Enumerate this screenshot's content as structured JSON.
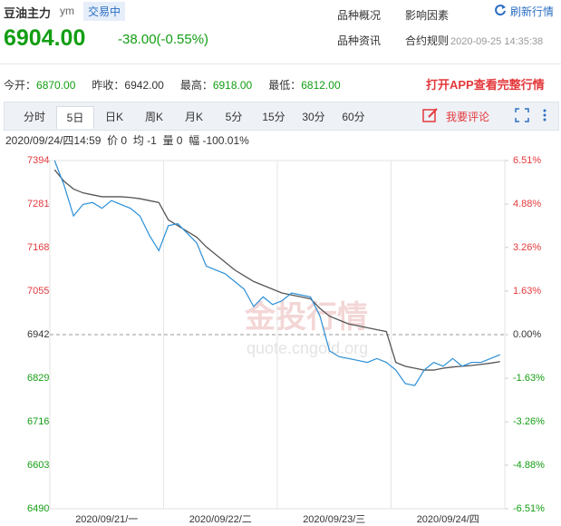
{
  "header": {
    "title": "豆油主力",
    "code": "ym",
    "status": "交易中",
    "price": "6904.00",
    "change": "-38.00(-0.55%)",
    "refresh": "刷新行情",
    "links": [
      "品种概况",
      "影响因素",
      "品种资讯",
      "合约规则"
    ],
    "datetime": "2020-09-25 14:35:38"
  },
  "stats": [
    {
      "label": "今开：",
      "value": "6870.00"
    },
    {
      "label": "昨收：",
      "value": "6942.00"
    },
    {
      "label": "最高：",
      "value": "6918.00"
    },
    {
      "label": "最低：",
      "value": "6812.00"
    }
  ],
  "app_link": "打开APP查看完整行情",
  "tabs": [
    "分时",
    "5日",
    "日K",
    "周K",
    "月K",
    "5分",
    "15分",
    "30分",
    "60分"
  ],
  "active_tab": "5日",
  "comment": "我要评论",
  "info_line": "2020/09/24/四14:59  价 0  均 -1  量 0  幅 -100.01%",
  "watermark": [
    "金投行情",
    "quote.cngold.org"
  ],
  "chart_data": {
    "type": "line",
    "categories": [
      null,
      null,
      null,
      null,
      null,
      null,
      "2020/09/21/一",
      null,
      null,
      null,
      null,
      null,
      null,
      null,
      null,
      null,
      null,
      null,
      "2020/09/22/二",
      null,
      null,
      null,
      null,
      null,
      null,
      null,
      null,
      null,
      null,
      null,
      "2020/09/23/三",
      null,
      null,
      null,
      null,
      null,
      null,
      null,
      null,
      null,
      null,
      null,
      "2020/09/24/四",
      null,
      null,
      null,
      null,
      null
    ],
    "series": [
      {
        "name": "价",
        "color": "#2b8fd6",
        "values": [
          7394,
          7330,
          7250,
          7280,
          7285,
          7270,
          7290,
          7280,
          7270,
          7250,
          7200,
          7160,
          7225,
          7230,
          7205,
          7180,
          7120,
          7110,
          7100,
          7080,
          7060,
          7015,
          7040,
          7020,
          7030,
          7050,
          7045,
          7040,
          6990,
          6900,
          6885,
          6880,
          6875,
          6870,
          6880,
          6870,
          6850,
          6815,
          6810,
          6850,
          6870,
          6860,
          6880,
          6860,
          6870,
          6870,
          6880,
          6890
        ]
      },
      {
        "name": "均",
        "color": "#555555",
        "values": [
          7370,
          7340,
          7320,
          7310,
          7305,
          7300,
          7300,
          7300,
          7298,
          7295,
          7290,
          7285,
          7240,
          7225,
          7210,
          7195,
          7170,
          7150,
          7130,
          7110,
          7095,
          7080,
          7070,
          7060,
          7050,
          7045,
          7040,
          7035,
          7010,
          6990,
          6980,
          6970,
          6965,
          6960,
          6955,
          6950,
          6870,
          6860,
          6855,
          6850,
          6850,
          6855,
          6858,
          6860,
          6862,
          6865,
          6868,
          6872
        ]
      }
    ],
    "ylim": [
      6490,
      7394
    ],
    "yticks": [
      7394,
      7281,
      7168,
      7055,
      6942,
      6829,
      6716,
      6603,
      6490
    ],
    "y2lim": [
      -6.51,
      6.51
    ],
    "y2ticks": [
      {
        "value": 6.51,
        "label": "6.51%"
      },
      {
        "value": 4.88,
        "label": "4.88%"
      },
      {
        "value": 3.26,
        "label": "3.26%"
      },
      {
        "value": 1.63,
        "label": "1.63%"
      },
      {
        "value": 0,
        "label": "0.00%"
      },
      {
        "value": -1.63,
        "label": "-1.63%"
      },
      {
        "value": -3.26,
        "label": "-3.26%"
      },
      {
        "value": -4.88,
        "label": "-4.88%"
      },
      {
        "value": -6.51,
        "label": "-6.51%"
      }
    ],
    "up_color": "#e4393c",
    "down_color": "#139e13",
    "flat_color": "#333333",
    "grid": false
  }
}
